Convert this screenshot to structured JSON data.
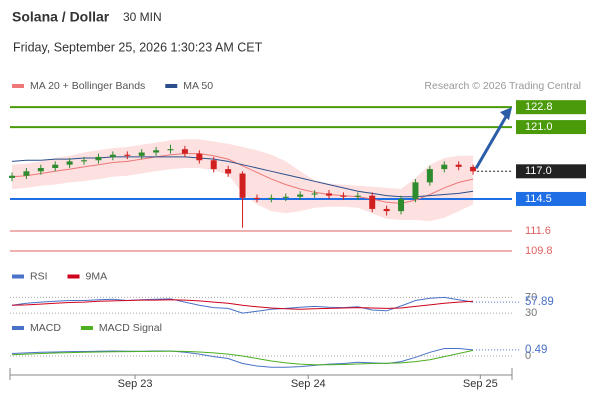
{
  "header": {
    "title": "Solana / Dollar",
    "interval": "30 MIN",
    "datetime": "Friday, September 25, 2026 1:30:23 AM CET"
  },
  "chart_data": [
    {
      "type": "candlestick",
      "credit": "Research © 2026 Trading Central",
      "xlim": [
        0,
        34.7
      ],
      "xticks": [
        {
          "value": 8.54,
          "label": "Sep 23"
        },
        {
          "value": 20.56,
          "label": "Sep 24"
        },
        {
          "value": 32.5,
          "label": "Sep 25"
        }
      ],
      "ylim": [
        108.8,
        123.9
      ],
      "up_color": "#2e8b2e",
      "down_color": "#d02020",
      "open": [
        116.4,
        116.6,
        117.0,
        117.3,
        117.6,
        117.9,
        118.0,
        118.3,
        118.5,
        118.4,
        118.7,
        118.9,
        119.0,
        118.6,
        118.0,
        117.2,
        116.8,
        114.6,
        114.5,
        114.6,
        114.7,
        114.9,
        115.0,
        114.8,
        114.7,
        114.8,
        113.6,
        113.4,
        114.5,
        116.0,
        117.2,
        117.6,
        117.4
      ],
      "high": [
        116.9,
        117.3,
        117.6,
        117.9,
        118.2,
        118.3,
        118.6,
        118.8,
        118.8,
        119.0,
        119.2,
        119.4,
        119.3,
        118.9,
        118.3,
        117.5,
        117.0,
        114.9,
        114.9,
        115.0,
        115.2,
        115.3,
        115.3,
        115.1,
        115.1,
        115.1,
        113.9,
        114.8,
        116.3,
        117.5,
        117.9,
        117.9,
        117.6
      ],
      "low": [
        116.1,
        116.3,
        116.7,
        117.0,
        117.3,
        117.6,
        117.7,
        118.0,
        118.1,
        118.1,
        118.4,
        118.6,
        118.3,
        117.7,
        116.9,
        116.5,
        111.9,
        114.2,
        114.2,
        114.3,
        114.4,
        114.6,
        114.5,
        114.4,
        114.4,
        113.3,
        113.0,
        113.1,
        114.2,
        115.7,
        116.9,
        117.1,
        116.7
      ],
      "close": [
        116.6,
        117.0,
        117.3,
        117.6,
        117.9,
        118.0,
        118.3,
        118.5,
        118.4,
        118.7,
        118.9,
        119.0,
        118.6,
        118.0,
        117.2,
        116.8,
        114.6,
        114.5,
        114.6,
        114.7,
        114.9,
        115.0,
        114.8,
        114.7,
        114.8,
        113.6,
        113.4,
        114.5,
        116.0,
        117.2,
        117.6,
        117.4,
        117.0
      ],
      "series": [
        {
          "name": "MA 20 + Bollinger Bands",
          "color": "#ee7777",
          "band_color": "#fde0e0",
          "values": [
            116.5,
            116.6,
            116.8,
            117.0,
            117.2,
            117.4,
            117.6,
            117.8,
            117.9,
            118.1,
            118.3,
            118.5,
            118.6,
            118.6,
            118.4,
            118.1,
            117.5,
            116.9,
            116.3,
            115.8,
            115.4,
            115.1,
            114.9,
            114.8,
            114.7,
            114.5,
            114.2,
            114.1,
            114.4,
            114.9,
            115.5,
            116.0,
            116.3
          ],
          "upper": [
            117.6,
            117.7,
            117.9,
            118.2,
            118.4,
            118.7,
            118.9,
            119.1,
            119.2,
            119.4,
            119.6,
            119.8,
            119.9,
            119.9,
            119.7,
            119.5,
            119.2,
            118.9,
            118.5,
            117.9,
            117.0,
            116.2,
            115.9,
            115.8,
            115.7,
            115.6,
            115.5,
            115.4,
            116.4,
            117.6,
            118.2,
            118.4,
            118.4
          ],
          "lower": [
            115.4,
            115.5,
            115.7,
            115.8,
            116.0,
            116.1,
            116.3,
            116.5,
            116.6,
            116.8,
            117.0,
            117.2,
            117.3,
            117.3,
            117.1,
            116.7,
            115.0,
            114.0,
            113.4,
            113.2,
            113.4,
            113.7,
            113.8,
            113.8,
            113.7,
            113.2,
            112.7,
            112.6,
            112.6,
            112.5,
            112.8,
            113.4,
            114.0
          ]
        },
        {
          "name": "MA 50",
          "color": "#2c4f8c",
          "values": [
            117.9,
            118.0,
            118.0,
            118.1,
            118.1,
            118.2,
            118.2,
            118.3,
            118.3,
            118.3,
            118.3,
            118.3,
            118.3,
            118.2,
            118.1,
            117.9,
            117.6,
            117.3,
            117.0,
            116.7,
            116.4,
            116.1,
            115.8,
            115.5,
            115.2,
            115.0,
            114.8,
            114.7,
            114.7,
            114.8,
            114.9,
            115.0,
            115.2
          ]
        }
      ],
      "levels": [
        {
          "value": 122.8,
          "label": "122.8",
          "color": "#4a9a0a",
          "style": "solid",
          "label_style": "box"
        },
        {
          "value": 121,
          "label": "121.0",
          "color": "#4a9a0a",
          "style": "solid",
          "label_style": "box"
        },
        {
          "value": 117,
          "label": "117.0",
          "color": "#222222",
          "style": "dotted",
          "label_style": "box"
        },
        {
          "value": 114.5,
          "label": "114.5",
          "color": "#1e6ee6",
          "style": "solid",
          "label_style": "box"
        },
        {
          "value": 111.6,
          "label": "111.6",
          "color": "#e06060",
          "style": "solid",
          "label_style": "text"
        },
        {
          "value": 109.8,
          "label": "109.8",
          "color": "#e06060",
          "style": "solid",
          "label_style": "text"
        }
      ]
    },
    {
      "type": "line",
      "xlim": [
        0,
        34.7
      ],
      "ylim": [
        10,
        90
      ],
      "yticks": [
        30,
        70
      ],
      "series": [
        {
          "name": "RSI",
          "color": "#4a72c8",
          "values": [
            50,
            55,
            58,
            60,
            62,
            62,
            64,
            65,
            62,
            64,
            65,
            66,
            58,
            50,
            44,
            42,
            30,
            35,
            40,
            42,
            45,
            47,
            45,
            44,
            46,
            38,
            36,
            48,
            62,
            68,
            70,
            64,
            57.89
          ]
        },
        {
          "name": "9MA",
          "color": "#d0021b",
          "values": [
            50,
            51,
            53,
            55,
            57,
            58,
            60,
            61,
            62,
            63,
            63,
            64,
            63,
            61,
            58,
            55,
            50,
            46,
            43,
            41,
            40,
            41,
            42,
            43,
            44,
            43,
            42,
            43,
            47,
            51,
            55,
            58,
            60
          ]
        }
      ]
    },
    {
      "type": "line",
      "xlim": [
        0,
        34.7
      ],
      "ylim": [
        -1.2,
        1.2
      ],
      "yticks": [
        0
      ],
      "series": [
        {
          "name": "MACD",
          "color": "#4a72c8",
          "values": [
            0.2,
            0.25,
            0.3,
            0.32,
            0.35,
            0.36,
            0.38,
            0.4,
            0.38,
            0.38,
            0.4,
            0.4,
            0.3,
            0.15,
            -0.05,
            -0.2,
            -0.6,
            -0.8,
            -0.9,
            -0.9,
            -0.85,
            -0.75,
            -0.65,
            -0.6,
            -0.5,
            -0.55,
            -0.6,
            -0.45,
            -0.1,
            0.3,
            0.6,
            0.6,
            0.49
          ]
        },
        {
          "name": "MACD Signal",
          "color": "#4caf20",
          "values": [
            0.1,
            0.15,
            0.2,
            0.24,
            0.27,
            0.3,
            0.32,
            0.34,
            0.35,
            0.36,
            0.37,
            0.38,
            0.37,
            0.32,
            0.25,
            0.15,
            0.0,
            -0.2,
            -0.4,
            -0.55,
            -0.65,
            -0.7,
            -0.7,
            -0.68,
            -0.64,
            -0.6,
            -0.58,
            -0.55,
            -0.45,
            -0.3,
            -0.05,
            0.2,
            0.45
          ]
        }
      ]
    }
  ]
}
